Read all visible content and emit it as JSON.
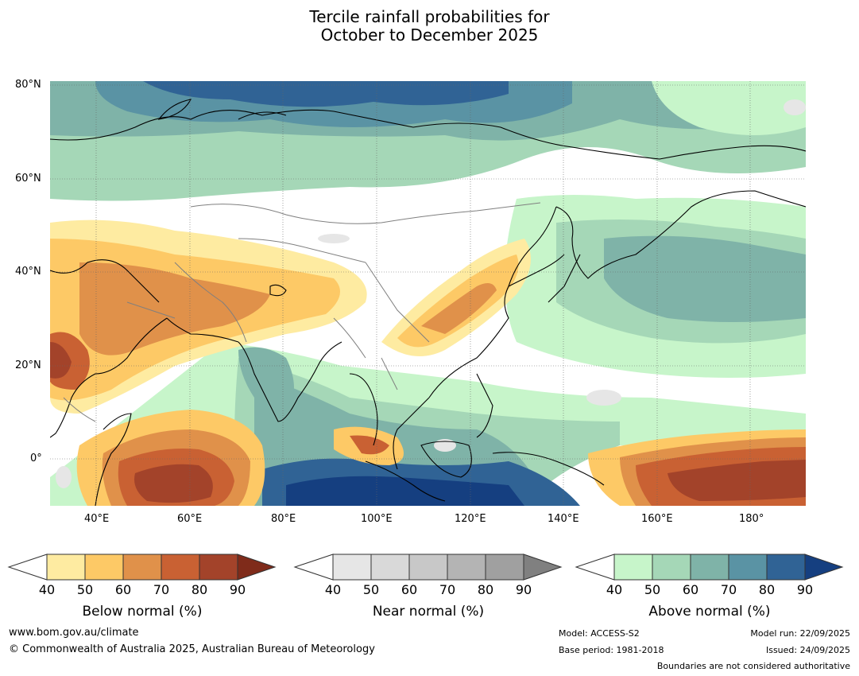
{
  "title": {
    "line1": "Tercile rainfall probabilities for",
    "line2": "October to December 2025"
  },
  "map": {
    "lat_labels": [
      "80°N",
      "60°N",
      "40°N",
      "20°N",
      "0°"
    ],
    "lon_labels": [
      "40°E",
      "60°E",
      "80°E",
      "100°E",
      "120°E",
      "140°E",
      "160°E",
      "180°"
    ],
    "extent": {
      "lon_min": 30,
      "lon_max": 191,
      "lat_min": -10,
      "lat_max": 81
    }
  },
  "colorbars": [
    {
      "name": "below",
      "caption": "Below normal (%)",
      "ticks": [
        "40",
        "50",
        "60",
        "70",
        "80",
        "90"
      ],
      "colors": [
        "#ffffff",
        "#feeba1",
        "#fdc966",
        "#e0914a",
        "#c96133",
        "#a3432a",
        "#7f2b1a"
      ]
    },
    {
      "name": "near",
      "caption": "Near normal (%)",
      "ticks": [
        "40",
        "50",
        "60",
        "70",
        "80",
        "90"
      ],
      "colors": [
        "#ffffff",
        "#e6e6e6",
        "#d9d9d9",
        "#c8c8c8",
        "#b4b4b4",
        "#a0a0a0",
        "#808080"
      ]
    },
    {
      "name": "above",
      "caption": "Above normal (%)",
      "ticks": [
        "40",
        "50",
        "60",
        "70",
        "80",
        "90"
      ],
      "colors": [
        "#ffffff",
        "#c7f5ca",
        "#a5d7b7",
        "#7fb3a8",
        "#5a93a4",
        "#306395",
        "#153f80"
      ]
    }
  ],
  "footer": {
    "url": "www.bom.gov.au/climate",
    "copyright": "© Commonwealth of Australia 2025, Australian Bureau of Meteorology",
    "model": "Model: ACCESS-S2",
    "base_period": "Base period: 1981-2018",
    "model_run": "Model run: 22/09/2025",
    "issued": "Issued: 24/09/2025",
    "disclaimer": "Boundaries are not considered authoritative"
  }
}
